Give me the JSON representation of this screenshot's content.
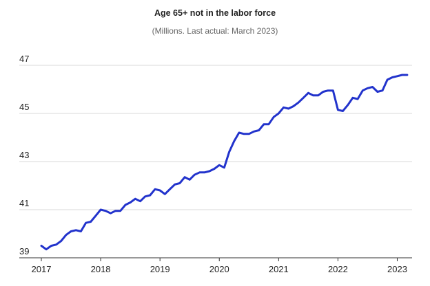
{
  "chart_data": {
    "type": "line",
    "title": "Age 65+ not in the labor force",
    "subtitle": "(Millions. Last actual: March 2023)",
    "xlabel": "",
    "ylabel": "",
    "ylim": [
      39,
      47
    ],
    "y_ticks": [
      39,
      41,
      43,
      45,
      47
    ],
    "x_ticks": [
      2017,
      2018,
      2019,
      2020,
      2021,
      2022,
      2023
    ],
    "xlim": [
      2017.0,
      2023.25
    ],
    "grid": "horizontal",
    "legend": "none",
    "colors": {
      "line": "#2233cc",
      "grid": "#d9d9d9",
      "axis": "#333333"
    },
    "series": [
      {
        "x": [
          2017.0,
          2017.083,
          2017.167,
          2017.25,
          2017.333,
          2017.417,
          2017.5,
          2017.583,
          2017.667,
          2017.75,
          2017.833,
          2017.917,
          2018.0,
          2018.083,
          2018.167,
          2018.25,
          2018.333,
          2018.417,
          2018.5,
          2018.583,
          2018.667,
          2018.75,
          2018.833,
          2018.917,
          2019.0,
          2019.083,
          2019.167,
          2019.25,
          2019.333,
          2019.417,
          2019.5,
          2019.583,
          2019.667,
          2019.75,
          2019.833,
          2019.917,
          2020.0,
          2020.083,
          2020.167,
          2020.25,
          2020.333,
          2020.417,
          2020.5,
          2020.583,
          2020.667,
          2020.75,
          2020.833,
          2020.917,
          2021.0,
          2021.083,
          2021.167,
          2021.25,
          2021.333,
          2021.417,
          2021.5,
          2021.583,
          2021.667,
          2021.75,
          2021.833,
          2021.917,
          2022.0,
          2022.083,
          2022.167,
          2022.25,
          2022.333,
          2022.417,
          2022.5,
          2022.583,
          2022.667,
          2022.75,
          2022.833,
          2022.917,
          2023.0,
          2023.083,
          2023.167
        ],
        "values": [
          39.5,
          39.35,
          39.5,
          39.55,
          39.7,
          39.95,
          40.1,
          40.15,
          40.1,
          40.45,
          40.5,
          40.75,
          41.0,
          40.95,
          40.85,
          40.95,
          40.95,
          41.2,
          41.3,
          41.45,
          41.35,
          41.55,
          41.6,
          41.85,
          41.8,
          41.65,
          41.85,
          42.05,
          42.1,
          42.35,
          42.25,
          42.45,
          42.55,
          42.55,
          42.6,
          42.7,
          42.85,
          42.75,
          43.4,
          43.85,
          44.2,
          44.15,
          44.15,
          44.25,
          44.3,
          44.55,
          44.55,
          44.85,
          45.0,
          45.25,
          45.2,
          45.3,
          45.45,
          45.65,
          45.85,
          45.75,
          45.75,
          45.9,
          45.95,
          45.95,
          45.15,
          45.1,
          45.35,
          45.65,
          45.6,
          45.95,
          46.05,
          46.1,
          45.9,
          45.95,
          46.4,
          46.5,
          46.55,
          46.6,
          46.6
        ]
      }
    ]
  }
}
